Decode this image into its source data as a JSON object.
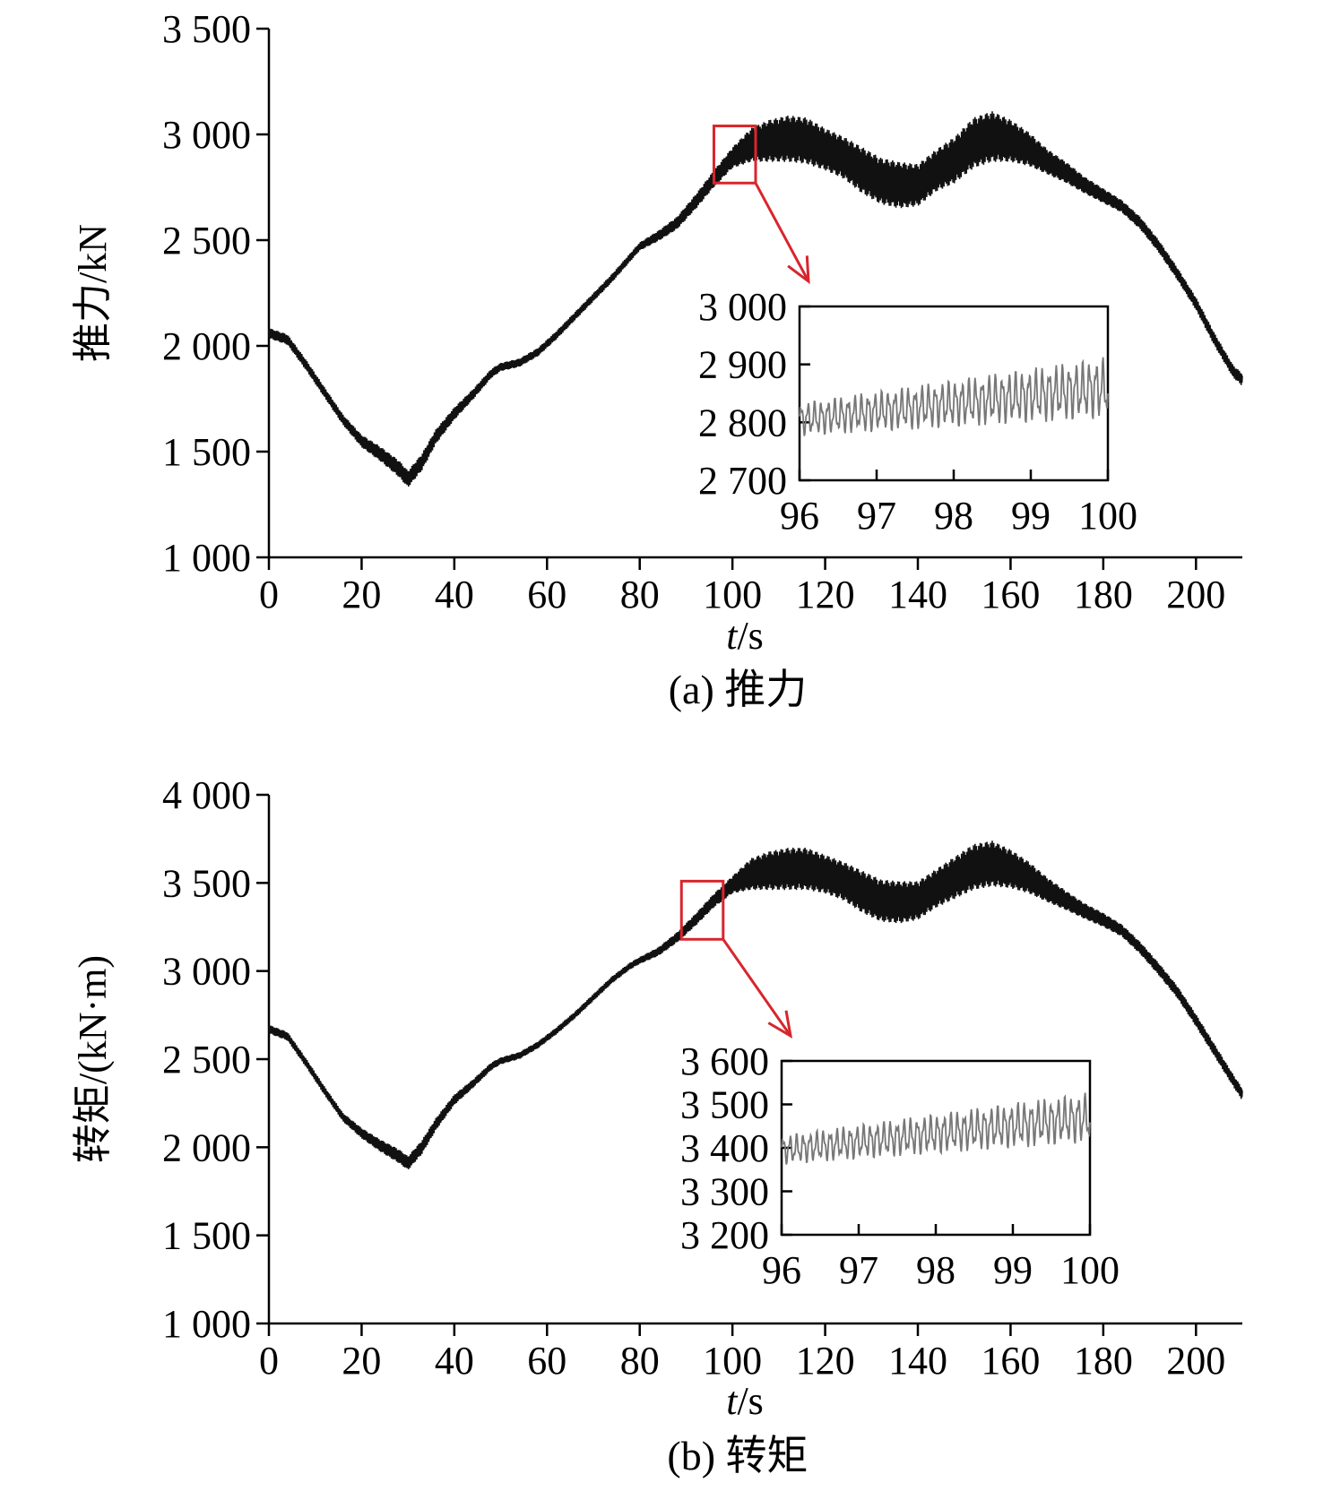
{
  "chart_data": [
    {
      "type": "line",
      "panel": "a",
      "caption": "(a) 推力",
      "ylabel": "推力/kN",
      "xlabel_italic": "t",
      "xlabel_rest": "/s",
      "xlim": [
        0,
        210
      ],
      "ylim": [
        1000,
        3500
      ],
      "xticks": [
        0,
        20,
        40,
        60,
        80,
        100,
        120,
        140,
        160,
        180,
        200
      ],
      "xtick_labels": [
        "0",
        "20",
        "40",
        "60",
        "80",
        "100",
        "120",
        "140",
        "160",
        "180",
        "200"
      ],
      "yticks": [
        1000,
        1500,
        2000,
        2500,
        3000,
        3500
      ],
      "ytick_labels": [
        "1 000",
        "1 500",
        "2 000",
        "2 500",
        "3 000",
        "3 500"
      ],
      "series": [
        {
          "x": [
            0,
            4,
            8,
            12,
            16,
            20,
            24,
            28,
            30,
            33,
            36,
            40,
            44,
            48,
            50,
            54,
            58,
            62,
            66,
            70,
            74,
            78,
            80,
            84,
            88,
            92,
            96,
            100,
            104,
            108,
            112,
            116,
            120,
            124,
            128,
            132,
            136,
            140,
            144,
            148,
            152,
            156,
            160,
            164,
            168,
            172,
            176,
            180,
            184,
            188,
            192,
            196,
            200,
            204,
            208,
            210
          ],
          "y": [
            2060,
            2030,
            1910,
            1780,
            1650,
            1550,
            1490,
            1420,
            1370,
            1450,
            1570,
            1680,
            1770,
            1870,
            1900,
            1920,
            1970,
            2050,
            2140,
            2230,
            2320,
            2420,
            2470,
            2520,
            2580,
            2680,
            2790,
            2890,
            2950,
            2970,
            2980,
            2970,
            2930,
            2890,
            2830,
            2780,
            2760,
            2760,
            2830,
            2880,
            2960,
            2990,
            2970,
            2930,
            2870,
            2820,
            2760,
            2710,
            2660,
            2580,
            2470,
            2340,
            2200,
            2030,
            1880,
            1840
          ],
          "band_half_width": [
            25,
            25,
            25,
            25,
            25,
            30,
            35,
            40,
            40,
            40,
            35,
            30,
            25,
            22,
            20,
            20,
            20,
            20,
            20,
            20,
            20,
            20,
            20,
            25,
            30,
            35,
            40,
            50,
            80,
            100,
            110,
            110,
            100,
            100,
            110,
            110,
            110,
            100,
            100,
            110,
            120,
            120,
            100,
            80,
            60,
            50,
            40,
            35,
            30,
            30,
            30,
            30,
            30,
            30,
            30,
            30
          ]
        }
      ],
      "zoom_box": {
        "x": [
          96,
          105
        ],
        "y": [
          2770,
          3040
        ]
      },
      "inset": {
        "type": "line",
        "xlim": [
          96,
          100
        ],
        "ylim": [
          2700,
          3000
        ],
        "xticks": [
          96,
          97,
          98,
          99,
          100
        ],
        "xtick_labels": [
          "96",
          "97",
          "98",
          "99",
          "100"
        ],
        "yticks": [
          2700,
          2800,
          2900,
          3000
        ],
        "ytick_labels": [
          "2 700",
          "2 800",
          "2 900",
          "3 000"
        ],
        "trend_start": 2805,
        "trend_end": 2860,
        "amplitude_start": 30,
        "amplitude_end": 55,
        "cycles": 46
      }
    },
    {
      "type": "line",
      "panel": "b",
      "caption": "(b) 转矩",
      "ylabel": "转矩/(kN·m)",
      "xlabel_italic": "t",
      "xlabel_rest": "/s",
      "xlim": [
        0,
        210
      ],
      "ylim": [
        1000,
        4000
      ],
      "xticks": [
        0,
        20,
        40,
        60,
        80,
        100,
        120,
        140,
        160,
        180,
        200
      ],
      "xtick_labels": [
        "0",
        "20",
        "40",
        "60",
        "80",
        "100",
        "120",
        "140",
        "160",
        "180",
        "200"
      ],
      "yticks": [
        1000,
        1500,
        2000,
        2500,
        3000,
        3500,
        4000
      ],
      "ytick_labels": [
        "1 000",
        "1 500",
        "2 000",
        "2 500",
        "3 000",
        "3 500",
        "4 000"
      ],
      "series": [
        {
          "x": [
            0,
            4,
            8,
            12,
            16,
            20,
            24,
            28,
            30,
            33,
            36,
            40,
            44,
            48,
            50,
            54,
            58,
            62,
            66,
            70,
            74,
            78,
            80,
            84,
            88,
            92,
            96,
            100,
            104,
            108,
            112,
            116,
            120,
            124,
            128,
            132,
            136,
            140,
            144,
            148,
            152,
            156,
            160,
            164,
            168,
            172,
            176,
            180,
            184,
            188,
            192,
            196,
            200,
            204,
            208,
            210
          ],
          "y": [
            2670,
            2630,
            2480,
            2320,
            2170,
            2080,
            2010,
            1950,
            1910,
            2000,
            2130,
            2270,
            2360,
            2460,
            2490,
            2520,
            2580,
            2660,
            2750,
            2850,
            2950,
            3030,
            3060,
            3110,
            3190,
            3290,
            3400,
            3490,
            3550,
            3570,
            3580,
            3580,
            3550,
            3510,
            3450,
            3400,
            3390,
            3400,
            3470,
            3530,
            3590,
            3610,
            3580,
            3530,
            3460,
            3400,
            3340,
            3290,
            3230,
            3130,
            3010,
            2880,
            2720,
            2550,
            2380,
            2300
          ],
          "band_half_width": [
            25,
            25,
            25,
            25,
            25,
            30,
            35,
            40,
            40,
            40,
            35,
            30,
            25,
            22,
            20,
            20,
            20,
            20,
            20,
            20,
            20,
            20,
            20,
            25,
            30,
            35,
            40,
            50,
            90,
            110,
            120,
            120,
            110,
            110,
            120,
            120,
            120,
            110,
            110,
            120,
            130,
            130,
            110,
            90,
            70,
            55,
            45,
            40,
            35,
            35,
            35,
            35,
            35,
            35,
            35,
            35
          ]
        }
      ],
      "zoom_box": {
        "x": [
          89,
          98
        ],
        "y": [
          3180,
          3510
        ]
      },
      "inset": {
        "type": "line",
        "xlim": [
          96,
          100
        ],
        "ylim": [
          3200,
          3600
        ],
        "xticks": [
          96,
          97,
          98,
          99,
          100
        ],
        "xtick_labels": [
          "96",
          "97",
          "98",
          "99",
          "100"
        ],
        "yticks": [
          3200,
          3300,
          3400,
          3500,
          3600
        ],
        "ytick_labels": [
          "3 200",
          "3 300",
          "3 400",
          "3 500",
          "3 600"
        ],
        "trend_start": 3395,
        "trend_end": 3470,
        "amplitude_start": 35,
        "amplitude_end": 60,
        "cycles": 46
      }
    }
  ]
}
